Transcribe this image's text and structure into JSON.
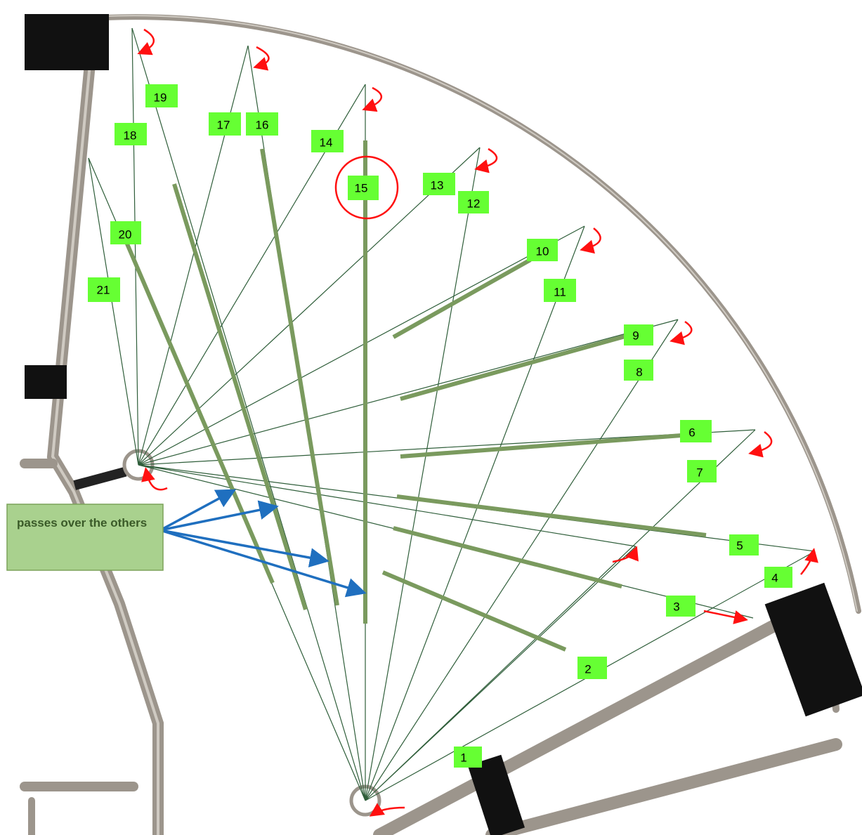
{
  "labels": [
    "1",
    "2",
    "3",
    "4",
    "5",
    "6",
    "7",
    "8",
    "9",
    "10",
    "11",
    "12",
    "13",
    "14",
    "15",
    "16",
    "17",
    "18",
    "19",
    "20",
    "21"
  ],
  "callout": "passes over the others"
}
